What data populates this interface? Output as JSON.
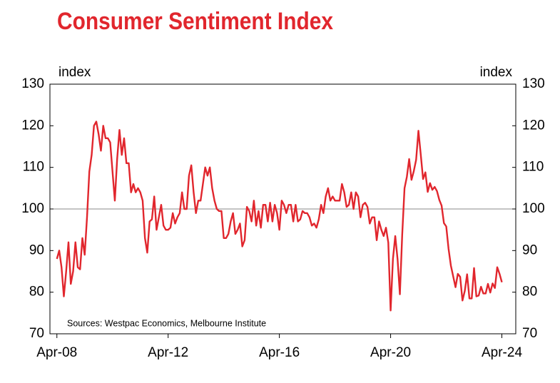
{
  "chart_data": {
    "type": "line",
    "title": "Consumer Sentiment Index",
    "ylabel": "index",
    "y2label": "index",
    "note": "Sources: Westpac Economics, Melbourne Institute",
    "x": [
      "2008-04",
      "2008-05",
      "2008-06",
      "2008-07",
      "2008-08",
      "2008-09",
      "2008-10",
      "2008-11",
      "2008-12",
      "2009-01",
      "2009-02",
      "2009-03",
      "2009-04",
      "2009-05",
      "2009-06",
      "2009-07",
      "2009-08",
      "2009-09",
      "2009-10",
      "2009-11",
      "2009-12",
      "2010-01",
      "2010-02",
      "2010-03",
      "2010-04",
      "2010-05",
      "2010-06",
      "2010-07",
      "2010-08",
      "2010-09",
      "2010-10",
      "2010-11",
      "2010-12",
      "2011-01",
      "2011-02",
      "2011-03",
      "2011-04",
      "2011-05",
      "2011-06",
      "2011-07",
      "2011-08",
      "2011-09",
      "2011-10",
      "2011-11",
      "2011-12",
      "2012-01",
      "2012-02",
      "2012-03",
      "2012-04",
      "2012-05",
      "2012-06",
      "2012-07",
      "2012-08",
      "2012-09",
      "2012-10",
      "2012-11",
      "2012-12",
      "2013-01",
      "2013-02",
      "2013-03",
      "2013-04",
      "2013-05",
      "2013-06",
      "2013-07",
      "2013-08",
      "2013-09",
      "2013-10",
      "2013-11",
      "2013-12",
      "2014-01",
      "2014-02",
      "2014-03",
      "2014-04",
      "2014-05",
      "2014-06",
      "2014-07",
      "2014-08",
      "2014-09",
      "2014-10",
      "2014-11",
      "2014-12",
      "2015-01",
      "2015-02",
      "2015-03",
      "2015-04",
      "2015-05",
      "2015-06",
      "2015-07",
      "2015-08",
      "2015-09",
      "2015-10",
      "2015-11",
      "2015-12",
      "2016-01",
      "2016-02",
      "2016-03",
      "2016-04",
      "2016-05",
      "2016-06",
      "2016-07",
      "2016-08",
      "2016-09",
      "2016-10",
      "2016-11",
      "2016-12",
      "2017-01",
      "2017-02",
      "2017-03",
      "2017-04",
      "2017-05",
      "2017-06",
      "2017-07",
      "2017-08",
      "2017-09",
      "2017-10",
      "2017-11",
      "2017-12",
      "2018-01",
      "2018-02",
      "2018-03",
      "2018-04",
      "2018-05",
      "2018-06",
      "2018-07",
      "2018-08",
      "2018-09",
      "2018-10",
      "2018-11",
      "2018-12",
      "2019-01",
      "2019-02",
      "2019-03",
      "2019-04",
      "2019-05",
      "2019-06",
      "2019-07",
      "2019-08",
      "2019-09",
      "2019-10",
      "2019-11",
      "2019-12",
      "2020-01",
      "2020-02",
      "2020-03",
      "2020-04",
      "2020-05",
      "2020-06",
      "2020-07",
      "2020-08",
      "2020-09",
      "2020-10",
      "2020-11",
      "2020-12",
      "2021-01",
      "2021-02",
      "2021-03",
      "2021-04",
      "2021-05",
      "2021-06",
      "2021-07",
      "2021-08",
      "2021-09",
      "2021-10",
      "2021-11",
      "2021-12",
      "2022-01",
      "2022-02",
      "2022-03",
      "2022-04",
      "2022-05",
      "2022-06",
      "2022-07",
      "2022-08",
      "2022-09",
      "2022-10",
      "2022-11",
      "2022-12",
      "2023-01",
      "2023-02",
      "2023-03",
      "2023-04",
      "2023-05",
      "2023-06",
      "2023-07",
      "2023-08",
      "2023-09",
      "2023-10",
      "2023-11",
      "2023-12",
      "2024-01",
      "2024-02",
      "2024-03",
      "2024-04"
    ],
    "series": [
      {
        "name": "Consumer Sentiment Index",
        "color": "#e1262d",
        "values": [
          88,
          90,
          86,
          79,
          85,
          92,
          82,
          85,
          92,
          86,
          85.5,
          93,
          89,
          98,
          109,
          113,
          120,
          121,
          118,
          114,
          120,
          117,
          117,
          116,
          109,
          102,
          112,
          119,
          113,
          117,
          111,
          111,
          104,
          106,
          104,
          105,
          104,
          102,
          93,
          89.5,
          97,
          97.5,
          103,
          95,
          98,
          101,
          96,
          95,
          95,
          95.5,
          99,
          96.5,
          98,
          99,
          104,
          100,
          100,
          108,
          110.5,
          104,
          99,
          102,
          102,
          106,
          110,
          108,
          110,
          105,
          102,
          100,
          99.5,
          99.5,
          93,
          93,
          94,
          97,
          99,
          94,
          95,
          96.5,
          91,
          92.5,
          100.5,
          99.5,
          97,
          102,
          96,
          99.5,
          95.5,
          101,
          101,
          97,
          101.5,
          97,
          101,
          99,
          95,
          102,
          101,
          99,
          101,
          101,
          97,
          101,
          97,
          97.5,
          99.5,
          99,
          99,
          98,
          96,
          96.5,
          95.5,
          97.5,
          101,
          99,
          103,
          105,
          102,
          103,
          102,
          102,
          102,
          106,
          104,
          100.5,
          101,
          104,
          100,
          104,
          103,
          98,
          101,
          101.5,
          100.5,
          96.5,
          98,
          98,
          92.5,
          97,
          95,
          93.5,
          95.5,
          91.9,
          75.6,
          88,
          93.5,
          87.9,
          79.5,
          93.8,
          105,
          107.7,
          112,
          107,
          109.1,
          111.8,
          118.8,
          113.1,
          107.2,
          108.8,
          104.1,
          106.2,
          104.6,
          105.3,
          104.3,
          102.2,
          100.8,
          96.6,
          95.8,
          90.4,
          86.4,
          83.8,
          81.2,
          84.4,
          83.7,
          78.0,
          80.3,
          84.3,
          78.5,
          78.5,
          85.8,
          79.0,
          79.2,
          81.3,
          79.7,
          79.7,
          82.0,
          79.9,
          82.1,
          81.0,
          86.0,
          84.4,
          82.4
        ]
      }
    ],
    "xlim": [
      "2008-01",
      "2024-10"
    ],
    "xticks": [
      {
        "value": "2008-04",
        "label": "Apr-08"
      },
      {
        "value": "2012-04",
        "label": "Apr-12"
      },
      {
        "value": "2016-04",
        "label": "Apr-16"
      },
      {
        "value": "2020-04",
        "label": "Apr-20"
      },
      {
        "value": "2024-04",
        "label": "Apr-24"
      }
    ],
    "ylim": [
      70,
      130
    ],
    "yticks": [
      70,
      80,
      90,
      100,
      110,
      120,
      130
    ],
    "y2lim": [
      70,
      130
    ],
    "y2ticks": [
      70,
      80,
      90,
      100,
      110,
      120,
      130
    ],
    "reference_line": 100
  }
}
